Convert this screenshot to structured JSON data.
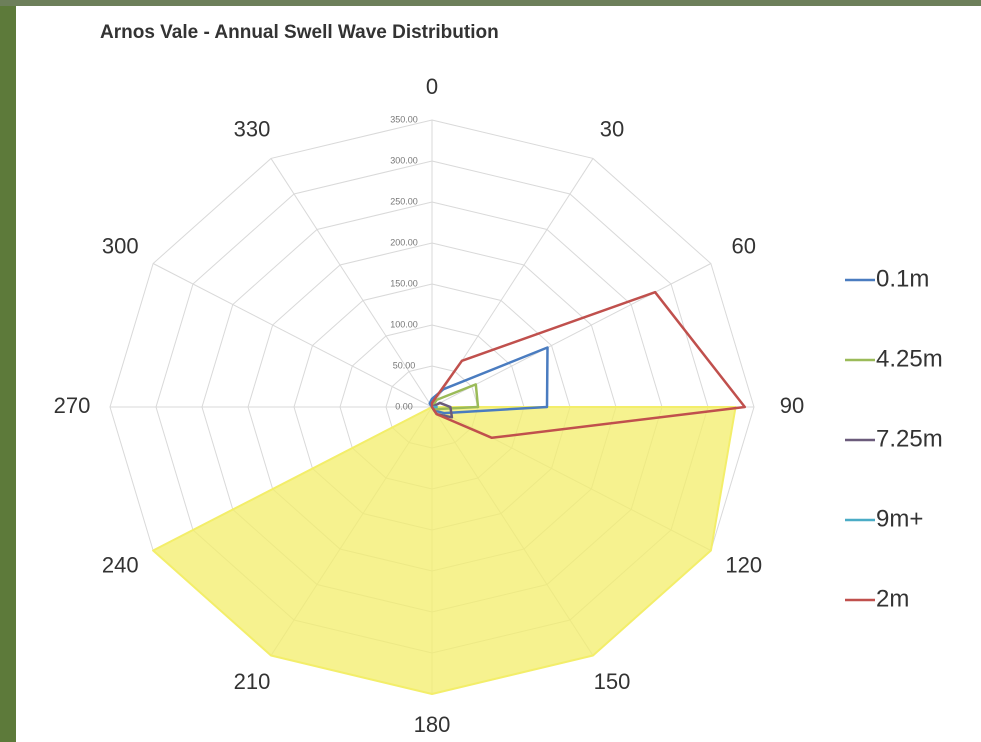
{
  "chart_data": {
    "type": "radar",
    "title": "Arnos Vale - Annual Swell Wave Distribution",
    "categories": [
      "0",
      "30",
      "60",
      "90",
      "120",
      "150",
      "180",
      "210",
      "240",
      "270",
      "300",
      "330"
    ],
    "ylim": [
      0,
      350
    ],
    "yticks": [
      {
        "value": 0,
        "label": "0.00"
      },
      {
        "value": 50,
        "label": "50.00"
      },
      {
        "value": 100,
        "label": "100.00"
      },
      {
        "value": 150,
        "label": "150.00"
      },
      {
        "value": 200,
        "label": "200.00"
      },
      {
        "value": 250,
        "label": "250.00"
      },
      {
        "value": 300,
        "label": "300.00"
      },
      {
        "value": 350,
        "label": "350.00"
      }
    ],
    "grid": true,
    "legend": "right",
    "series": [
      {
        "color": "#f3ee6a",
        "area": true,
        "values": [
          0,
          0,
          0,
          330,
          350,
          350,
          350,
          350,
          350,
          0,
          0,
          0
        ]
      },
      {
        "name": "0.1m",
        "color": "#4a7cc0",
        "values": [
          10,
          25,
          145,
          125,
          15,
          5,
          0,
          0,
          0,
          0,
          0,
          5
        ]
      },
      {
        "name": "4.25m",
        "color": "#9bbb59",
        "values": [
          0,
          10,
          55,
          50,
          5,
          0,
          0,
          0,
          0,
          0,
          0,
          0
        ]
      },
      {
        "name": "7.25m",
        "color": "#6b5b7b",
        "values": [
          0,
          0,
          10,
          20,
          25,
          10,
          0,
          0,
          0,
          0,
          0,
          0
        ]
      },
      {
        "name": "9m+",
        "color": "#4bacc6",
        "values": [
          0,
          0,
          0,
          5,
          0,
          0,
          0,
          0,
          0,
          0,
          0,
          0
        ]
      },
      {
        "name": "2m",
        "color": "#c0504d",
        "values": [
          5,
          65,
          280,
          340,
          75,
          10,
          0,
          0,
          0,
          0,
          0,
          0
        ]
      }
    ]
  }
}
